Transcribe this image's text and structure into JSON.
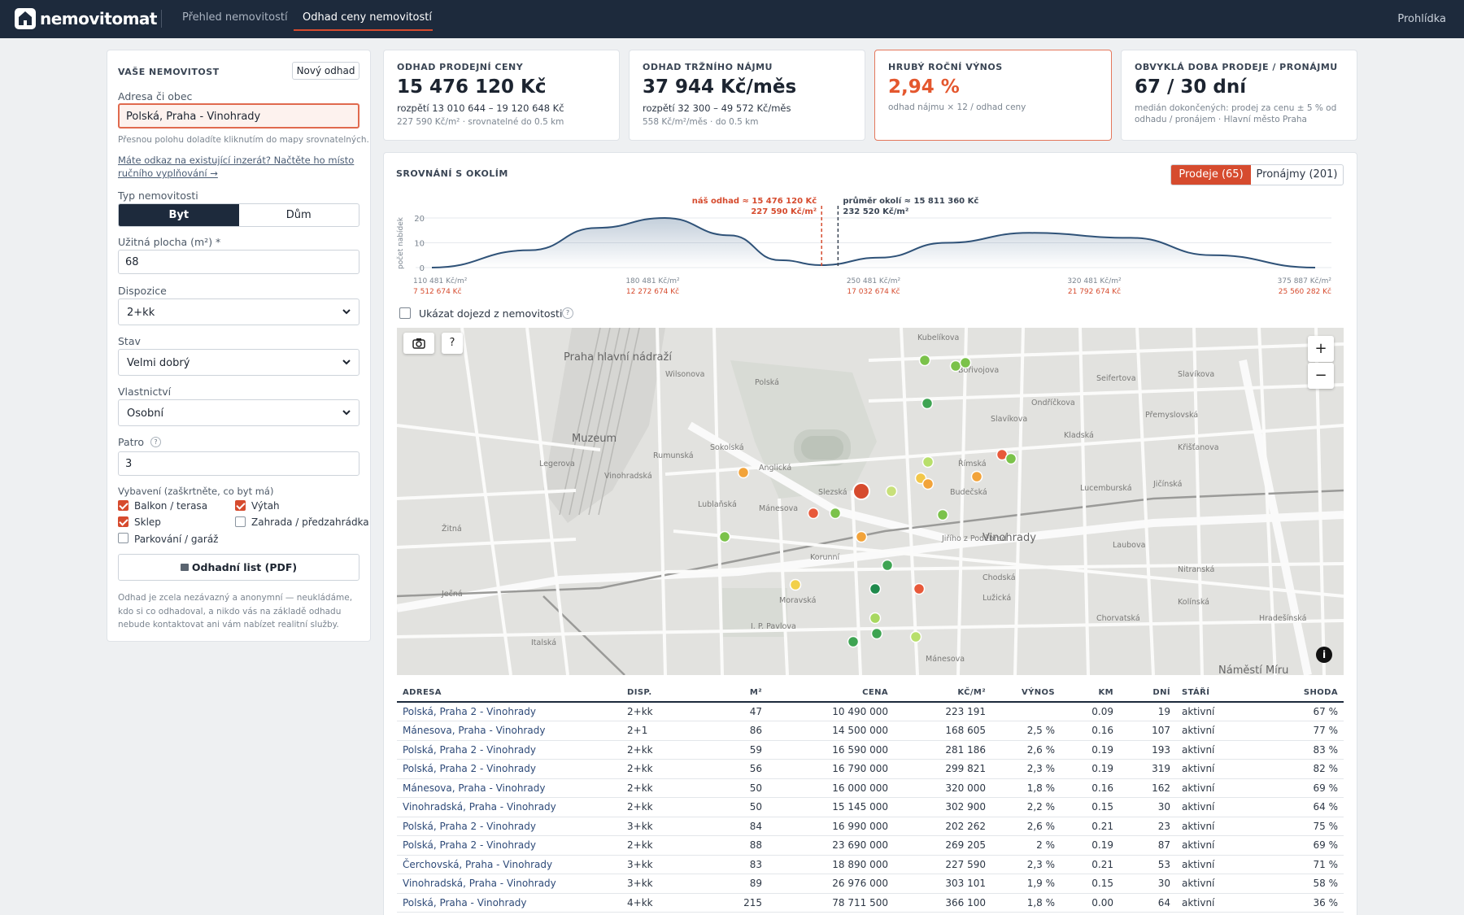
{
  "topbar": {
    "brand": "nemovitomat",
    "nav": [
      "Přehled nemovitostí",
      "Odhad ceny nemovitostí"
    ],
    "tour": "Prohlídka"
  },
  "form": {
    "title": "VAŠE NEMOVITOST",
    "new_estimate": "Nový odhad",
    "address_label": "Adresa či obec",
    "address_value": "Polská, Praha - Vinohrady",
    "address_hint": "Přesnou polohu doladíte kliknutím do mapy srovnatelných.",
    "link_text": "Máte odkaz na existující inzerát? Načtěte ho místo ručního vyplňování →",
    "type_label": "Typ nemovitosti",
    "type_options": [
      "Byt",
      "Dům"
    ],
    "area_label": "Užitná plocha (m²) *",
    "area_value": "68",
    "disp_label": "Dispozice",
    "disp_value": "2+kk",
    "state_label": "Stav",
    "state_value": "Velmi dobrý",
    "own_label": "Vlastnictví",
    "own_value": "Osobní",
    "floor_label": "Patro",
    "floor_value": "3",
    "equip_label": "Vybavení (zaškrtněte, co byt má)",
    "equip": [
      {
        "label": "Balkon / terasa",
        "checked": true
      },
      {
        "label": "Výtah",
        "checked": true
      },
      {
        "label": "Sklep",
        "checked": true
      },
      {
        "label": "Zahrada / předzahrádka",
        "checked": false
      },
      {
        "label": "Parkování / garáž",
        "checked": false
      }
    ],
    "pdf_button": "Odhadní list (PDF)",
    "disclaimer": "Odhad je zcela nezávazný a anonymní — neukládáme, kdo si co odhadoval, a nikdo vás na základě odhadu nebude kontaktovat ani vám nabízet realitní služby."
  },
  "kpis": [
    {
      "title": "ODHAD PRODEJNÍ CENY",
      "value": "15 476 120 Kč",
      "sub1": "rozpětí 13 010 644 – 19 120 648 Kč",
      "sub2": "227 590 Kč/m² · srovnatelné do 0.5 km"
    },
    {
      "title": "ODHAD TRŽNÍHO NÁJMU",
      "value": "37 944 Kč/měs",
      "sub1": "rozpětí 32 300 – 49 572 Kč/měs",
      "sub2": "558 Kč/m²/měs · do 0.5 km"
    },
    {
      "title": "HRUBÝ ROČNÍ VÝNOS",
      "value": "2,94 %",
      "sub1": "odhad nájmu × 12 / odhad ceny"
    },
    {
      "title": "OBVYKLÁ DOBA PRODEJE / PRONÁJMU",
      "value": "67 / 30 dní",
      "sub1": "medián dokončených: prodej za cenu ± 5 % od odhadu / pronájem · Hlavní město Praha"
    }
  ],
  "comparison": {
    "title": "SROVNÁNÍ S OKOLÍM",
    "tab_sales": "Prodeje (65)",
    "tab_rents": "Pronájmy (201)",
    "yaxis_label": "počet nabídek",
    "commute_label": "Ukázat dojezd z nemovitosti"
  },
  "chart_data": {
    "type": "area",
    "ylabel": "počet nabídek",
    "ylim": [
      0,
      20
    ],
    "yticks": [
      0,
      10,
      20
    ],
    "x": [
      110481,
      140000,
      160000,
      180481,
      200000,
      215000,
      227590,
      245000,
      265000,
      290000,
      320481,
      345000,
      375887
    ],
    "values": [
      0,
      7,
      16,
      20,
      13,
      3,
      1,
      4,
      10,
      14,
      12,
      5,
      0
    ],
    "xticks": [
      {
        "m2": "110 481 Kč/m²",
        "total": "7 512 674 Kč"
      },
      {
        "m2": "180 481 Kč/m²",
        "total": "12 272 674 Kč"
      },
      {
        "m2": "250 481 Kč/m²",
        "total": "17 032 674 Kč"
      },
      {
        "m2": "320 481 Kč/m²",
        "total": "21 792 674 Kč"
      },
      {
        "m2": "375 887 Kč/m²",
        "total": "25 560 282 Kč"
      }
    ],
    "markers": [
      {
        "label1": "náš odhad ≈ 15 476 120 Kč",
        "label2": "227 590 Kč/m²",
        "x": 227590,
        "color": "#d64b2e"
      },
      {
        "label1": "průměr okolí ≈ 15 811 360 Kč",
        "label2": "232 520 Kč/m²",
        "x": 232520,
        "color": "#3a4554"
      }
    ]
  },
  "map": {
    "zoom_in": "+",
    "zoom_out": "−",
    "help": "?",
    "labels": [
      "Praha hlavní nádraží",
      "Muzeum",
      "Vinohradská",
      "Jiřího z Poděbrad",
      "Vinohrady",
      "Náměstí Míru",
      "I. P. Pavlova",
      "Italská",
      "Polská",
      "Slezská",
      "Korunní",
      "Moravská",
      "Mánesova",
      "Žitná",
      "Ječná",
      "Wilsonova",
      "Bořivojova",
      "Slavíkova",
      "Ondříčkova",
      "Seifertova",
      "Kubelíkova",
      "Legerova",
      "Sokolská",
      "Lublaňská",
      "Rumunská",
      "Anglická",
      "Římská",
      "Budečská",
      "Chodská",
      "Lužická",
      "Kladská",
      "Slavíkova",
      "Křišťanova",
      "Jičínská",
      "Přemyslovská",
      "Lucemburská",
      "Laubova",
      "Nitranská",
      "Kolínská",
      "Hradešínská",
      "Chorvatská",
      "Mánesova"
    ]
  },
  "table": {
    "headers": [
      "ADRESA",
      "DISP.",
      "M²",
      "CENA",
      "KČ/M²",
      "VÝNOS",
      "KM",
      "DNÍ",
      "STÁŘÍ",
      "SHODA"
    ],
    "rows": [
      [
        "Polská, Praha 2 - Vinohrady",
        "2+kk",
        "47",
        "10 490 000",
        "223 191",
        "",
        "0.09",
        "19",
        "aktivní",
        "67 %"
      ],
      [
        "Mánesova, Praha - Vinohrady",
        "2+1",
        "86",
        "14 500 000",
        "168 605",
        "2,5 %",
        "0.16",
        "107",
        "aktivní",
        "77 %"
      ],
      [
        "Polská, Praha 2 - Vinohrady",
        "2+kk",
        "59",
        "16 590 000",
        "281 186",
        "2,6 %",
        "0.19",
        "193",
        "aktivní",
        "83 %"
      ],
      [
        "Polská, Praha 2 - Vinohrady",
        "2+kk",
        "56",
        "16 790 000",
        "299 821",
        "2,3 %",
        "0.19",
        "319",
        "aktivní",
        "82 %"
      ],
      [
        "Mánesova, Praha - Vinohrady",
        "2+kk",
        "50",
        "16 000 000",
        "320 000",
        "1,8 %",
        "0.16",
        "162",
        "aktivní",
        "69 %"
      ],
      [
        "Vinohradská, Praha - Vinohrady",
        "2+kk",
        "50",
        "15 145 000",
        "302 900",
        "2,2 %",
        "0.15",
        "30",
        "aktivní",
        "64 %"
      ],
      [
        "Polská, Praha 2 - Vinohrady",
        "3+kk",
        "84",
        "16 990 000",
        "202 262",
        "2,6 %",
        "0.21",
        "23",
        "aktivní",
        "75 %"
      ],
      [
        "Polská, Praha 2 - Vinohrady",
        "2+kk",
        "88",
        "23 690 000",
        "269 205",
        "2 %",
        "0.19",
        "87",
        "aktivní",
        "69 %"
      ],
      [
        "Čerchovská, Praha - Vinohrady",
        "3+kk",
        "83",
        "18 890 000",
        "227 590",
        "2,3 %",
        "0.21",
        "53",
        "aktivní",
        "71 %"
      ],
      [
        "Vinohradská, Praha - Vinohrady",
        "3+kk",
        "89",
        "26 976 000",
        "303 101",
        "1,9 %",
        "0.15",
        "30",
        "aktivní",
        "58 %"
      ],
      [
        "Polská, Praha - Vinohrady",
        "4+kk",
        "215",
        "78 711 500",
        "366 100",
        "1,8 %",
        "0.00",
        "64",
        "aktivní",
        "36 %"
      ]
    ]
  },
  "colors": {
    "accent": "#d64b2e",
    "navy": "#1d2a3c",
    "link": "#2e4a78"
  }
}
